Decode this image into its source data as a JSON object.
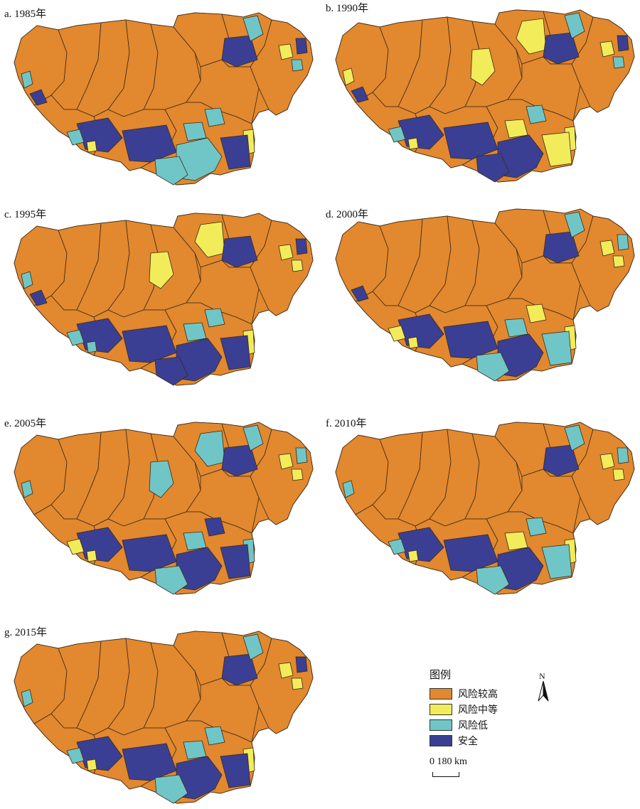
{
  "panels": [
    {
      "label": "a. 1985年",
      "year": 1985
    },
    {
      "label": "b. 1990年",
      "year": 1990
    },
    {
      "label": "c. 1995年",
      "year": 1995
    },
    {
      "label": "d. 2000年",
      "year": 2000
    },
    {
      "label": "e. 2005年",
      "year": 2005
    },
    {
      "label": "f. 2010年",
      "year": 2010
    },
    {
      "label": "g. 2015年",
      "year": 2015
    }
  ],
  "legend": {
    "title": "图例",
    "items": [
      {
        "label": "风险较高",
        "color": "#e2882e"
      },
      {
        "label": "风险中等",
        "color": "#f2ec5a"
      },
      {
        "label": "风险低",
        "color": "#70c6c6"
      },
      {
        "label": "安全",
        "color": "#3a3f94"
      }
    ]
  },
  "north_arrow": {
    "letter": "N"
  },
  "scale": {
    "text": "0 180 km"
  }
}
